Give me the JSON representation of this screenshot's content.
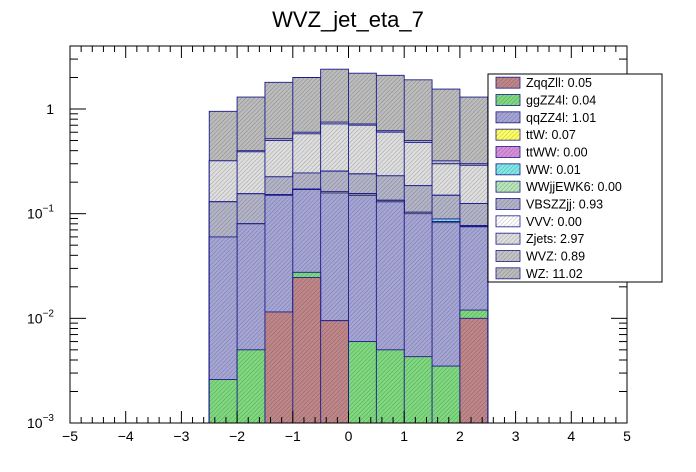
{
  "chart_data": {
    "type": "bar",
    "stacked": true,
    "title": "WVZ_jet_eta_7",
    "xlabel": "",
    "ylabel": "",
    "x_range": [
      -5,
      5
    ],
    "y_range": [
      0.001,
      4
    ],
    "y_scale": "log",
    "grid": false,
    "legend_position": "top-right",
    "bin_edges": [
      -2.5,
      -2.0,
      -1.5,
      -1.0,
      -0.5,
      0.0,
      0.5,
      1.0,
      1.5,
      2.0,
      2.5
    ],
    "x_ticks": [
      "−5",
      "−4",
      "−3",
      "−2",
      "−1",
      "0",
      "1",
      "2",
      "3",
      "4",
      "5"
    ],
    "x_tick_values": [
      -5,
      -4,
      -3,
      -2,
      -1,
      0,
      1,
      2,
      3,
      4,
      5
    ],
    "y_ticks": [
      {
        "value": 0.001,
        "base": "10",
        "exp": "−3"
      },
      {
        "value": 0.01,
        "base": "10",
        "exp": "−2"
      },
      {
        "value": 0.1,
        "base": "10",
        "exp": "−1"
      },
      {
        "value": 1,
        "base": "1",
        "exp": ""
      }
    ],
    "cumulative_top": {
      "ZqqZll": [
        0,
        0,
        0.0115,
        0.0245,
        0.0095,
        0,
        0,
        0,
        0,
        0.01
      ],
      "ggZZ4l": [
        0.0026,
        0.005,
        0.0115,
        0.0275,
        0.0095,
        0.006,
        0.005,
        0.0043,
        0.0035,
        0.012
      ],
      "qqZZ4l": [
        0.06,
        0.08,
        0.15,
        0.17,
        0.158,
        0.15,
        0.13,
        0.1,
        0.082,
        0.075
      ],
      "ttW": [
        0.06,
        0.08,
        0.152,
        0.172,
        0.163,
        0.155,
        0.134,
        0.103,
        0.084,
        0.076
      ],
      "ttWW": [
        0.06,
        0.08,
        0.152,
        0.172,
        0.163,
        0.155,
        0.134,
        0.103,
        0.084,
        0.076
      ],
      "WW": [
        0.06,
        0.08,
        0.152,
        0.172,
        0.163,
        0.155,
        0.134,
        0.103,
        0.089,
        0.077
      ],
      "WWjjEWK6": [
        0.06,
        0.08,
        0.152,
        0.172,
        0.163,
        0.155,
        0.134,
        0.103,
        0.089,
        0.077
      ],
      "VBSZZjj": [
        0.13,
        0.155,
        0.225,
        0.245,
        0.255,
        0.24,
        0.23,
        0.185,
        0.15,
        0.125
      ],
      "VVV": [
        0.13,
        0.155,
        0.225,
        0.245,
        0.255,
        0.24,
        0.23,
        0.185,
        0.15,
        0.125
      ],
      "Zjets": [
        0.32,
        0.39,
        0.5,
        0.58,
        0.72,
        0.7,
        0.6,
        0.48,
        0.3,
        0.29
      ],
      "WVZ": [
        0.32,
        0.4,
        0.52,
        0.6,
        0.75,
        0.72,
        0.62,
        0.5,
        0.32,
        0.3
      ],
      "WZ": [
        0.95,
        1.3,
        1.8,
        2.0,
        2.4,
        2.2,
        2.1,
        1.9,
        1.55,
        1.3
      ]
    },
    "series": [
      {
        "name": "ZqqZll",
        "label": "ZqqZll: 0.05",
        "color": "#c0878a"
      },
      {
        "name": "ggZZ4l",
        "label": "ggZZ4l: 0.04",
        "color": "#7fd97f"
      },
      {
        "name": "qqZZ4l",
        "label": "qqZZ4l: 1.01",
        "color": "#a6a6d6"
      },
      {
        "name": "ttW",
        "label": "ttW: 0.07",
        "color": "#ffff66"
      },
      {
        "name": "ttWW",
        "label": "ttWW: 0.00",
        "color": "#d98fd9"
      },
      {
        "name": "WW",
        "label": "WW: 0.01",
        "color": "#7fe8e8"
      },
      {
        "name": "WWjjEWK6",
        "label": "WWjjEWK6: 0.00",
        "color": "#b9e6b9"
      },
      {
        "name": "VBSZZjj",
        "label": "VBSZZjj: 0.93",
        "color": "#b4b4c8"
      },
      {
        "name": "VVV",
        "label": "VVV: 0.00",
        "color": "#ffffff"
      },
      {
        "name": "Zjets",
        "label": "Zjets: 2.97",
        "color": "#dedede"
      },
      {
        "name": "WVZ",
        "label": "WVZ: 0.89",
        "color": "#c4c4c4"
      },
      {
        "name": "WZ",
        "label": "WZ: 11.02",
        "color": "#bcbcbc"
      }
    ]
  }
}
